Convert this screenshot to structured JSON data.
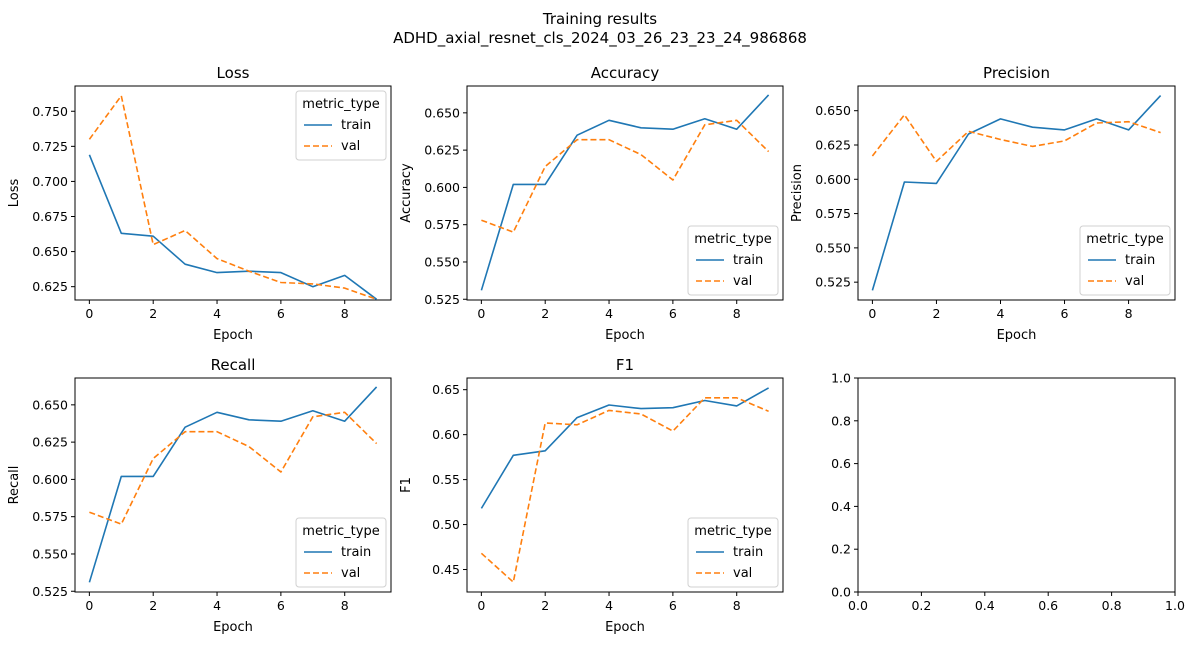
{
  "figure": {
    "suptitle_line1": "Training results",
    "suptitle_line2": "ADHD_axial_resnet_cls_2024_03_26_23_23_24_986868"
  },
  "colors": {
    "train": "#1f77b4",
    "val": "#ff7f0e"
  },
  "chart_data": [
    {
      "type": "line",
      "title": "Loss",
      "xlabel": "Epoch",
      "ylabel": "Loss",
      "x": [
        0,
        1,
        2,
        3,
        4,
        5,
        6,
        7,
        8,
        9
      ],
      "xlim": [
        -0.45,
        9.45
      ],
      "ylim": [
        0.6155,
        0.768
      ],
      "xticks": [
        0,
        2,
        4,
        6,
        8
      ],
      "yticks": [
        0.625,
        0.65,
        0.675,
        0.7,
        0.725,
        0.75
      ],
      "ytick_labels": [
        "0.625",
        "0.650",
        "0.675",
        "0.700",
        "0.725",
        "0.750"
      ],
      "legend": {
        "title": "metric_type",
        "loc": "upper right"
      },
      "series": [
        {
          "name": "train",
          "style": "solid",
          "values": [
            0.719,
            0.663,
            0.661,
            0.641,
            0.635,
            0.636,
            0.635,
            0.625,
            0.633,
            0.616
          ]
        },
        {
          "name": "val",
          "style": "dashed",
          "values": [
            0.73,
            0.761,
            0.655,
            0.665,
            0.645,
            0.636,
            0.628,
            0.627,
            0.624,
            0.616
          ]
        }
      ]
    },
    {
      "type": "line",
      "title": "Accuracy",
      "xlabel": "Epoch",
      "ylabel": "Accuracy",
      "x": [
        0,
        1,
        2,
        3,
        4,
        5,
        6,
        7,
        8,
        9
      ],
      "xlim": [
        -0.45,
        9.45
      ],
      "ylim": [
        0.5245,
        0.668
      ],
      "xticks": [
        0,
        2,
        4,
        6,
        8
      ],
      "yticks": [
        0.525,
        0.55,
        0.575,
        0.6,
        0.625,
        0.65
      ],
      "ytick_labels": [
        "0.525",
        "0.550",
        "0.575",
        "0.600",
        "0.625",
        "0.650"
      ],
      "legend": {
        "title": "metric_type",
        "loc": "lower right"
      },
      "series": [
        {
          "name": "train",
          "style": "solid",
          "values": [
            0.531,
            0.602,
            0.602,
            0.635,
            0.645,
            0.64,
            0.639,
            0.646,
            0.639,
            0.662
          ]
        },
        {
          "name": "val",
          "style": "dashed",
          "values": [
            0.578,
            0.57,
            0.614,
            0.632,
            0.632,
            0.622,
            0.605,
            0.642,
            0.645,
            0.624
          ]
        }
      ]
    },
    {
      "type": "line",
      "title": "Precision",
      "xlabel": "Epoch",
      "ylabel": "Precision",
      "x": [
        0,
        1,
        2,
        3,
        4,
        5,
        6,
        7,
        8,
        9
      ],
      "xlim": [
        -0.45,
        9.45
      ],
      "ylim": [
        0.512,
        0.668
      ],
      "xticks": [
        0,
        2,
        4,
        6,
        8
      ],
      "yticks": [
        0.525,
        0.55,
        0.575,
        0.6,
        0.625,
        0.65
      ],
      "ytick_labels": [
        "0.525",
        "0.550",
        "0.575",
        "0.600",
        "0.625",
        "0.650"
      ],
      "legend": {
        "title": "metric_type",
        "loc": "lower right"
      },
      "series": [
        {
          "name": "train",
          "style": "solid",
          "values": [
            0.519,
            0.598,
            0.597,
            0.633,
            0.644,
            0.638,
            0.636,
            0.644,
            0.636,
            0.661
          ]
        },
        {
          "name": "val",
          "style": "dashed",
          "values": [
            0.617,
            0.647,
            0.613,
            0.635,
            0.629,
            0.624,
            0.628,
            0.641,
            0.642,
            0.634
          ]
        }
      ]
    },
    {
      "type": "line",
      "title": "Recall",
      "xlabel": "Epoch",
      "ylabel": "Recall",
      "x": [
        0,
        1,
        2,
        3,
        4,
        5,
        6,
        7,
        8,
        9
      ],
      "xlim": [
        -0.45,
        9.45
      ],
      "ylim": [
        0.5245,
        0.668
      ],
      "xticks": [
        0,
        2,
        4,
        6,
        8
      ],
      "yticks": [
        0.525,
        0.55,
        0.575,
        0.6,
        0.625,
        0.65
      ],
      "ytick_labels": [
        "0.525",
        "0.550",
        "0.575",
        "0.600",
        "0.625",
        "0.650"
      ],
      "legend": {
        "title": "metric_type",
        "loc": "lower right"
      },
      "series": [
        {
          "name": "train",
          "style": "solid",
          "values": [
            0.531,
            0.602,
            0.602,
            0.635,
            0.645,
            0.64,
            0.639,
            0.646,
            0.639,
            0.662
          ]
        },
        {
          "name": "val",
          "style": "dashed",
          "values": [
            0.578,
            0.57,
            0.614,
            0.632,
            0.632,
            0.622,
            0.605,
            0.642,
            0.645,
            0.624
          ]
        }
      ]
    },
    {
      "type": "line",
      "title": "F1",
      "xlabel": "Epoch",
      "ylabel": "F1",
      "x": [
        0,
        1,
        2,
        3,
        4,
        5,
        6,
        7,
        8,
        9
      ],
      "xlim": [
        -0.45,
        9.45
      ],
      "ylim": [
        0.425,
        0.663
      ],
      "xticks": [
        0,
        2,
        4,
        6,
        8
      ],
      "yticks": [
        0.45,
        0.5,
        0.55,
        0.6,
        0.65
      ],
      "ytick_labels": [
        "0.45",
        "0.50",
        "0.55",
        "0.60",
        "0.65"
      ],
      "legend": {
        "title": "metric_type",
        "loc": "lower right"
      },
      "series": [
        {
          "name": "train",
          "style": "solid",
          "values": [
            0.518,
            0.577,
            0.582,
            0.619,
            0.633,
            0.629,
            0.63,
            0.638,
            0.632,
            0.652
          ]
        },
        {
          "name": "val",
          "style": "dashed",
          "values": [
            0.468,
            0.436,
            0.613,
            0.611,
            0.627,
            0.623,
            0.604,
            0.641,
            0.641,
            0.626
          ]
        }
      ]
    },
    {
      "type": "line",
      "title": "",
      "xlabel": "",
      "ylabel": "",
      "x": [],
      "xlim": [
        0,
        1
      ],
      "ylim": [
        0,
        1
      ],
      "xticks": [
        0,
        0.2,
        0.4,
        0.6,
        0.8,
        1.0
      ],
      "xtick_labels": [
        "0.0",
        "0.2",
        "0.4",
        "0.6",
        "0.8",
        "1.0"
      ],
      "yticks": [
        0,
        0.2,
        0.4,
        0.6,
        0.8,
        1.0
      ],
      "ytick_labels": [
        "0.0",
        "0.2",
        "0.4",
        "0.6",
        "0.8",
        "1.0"
      ],
      "series": []
    }
  ]
}
